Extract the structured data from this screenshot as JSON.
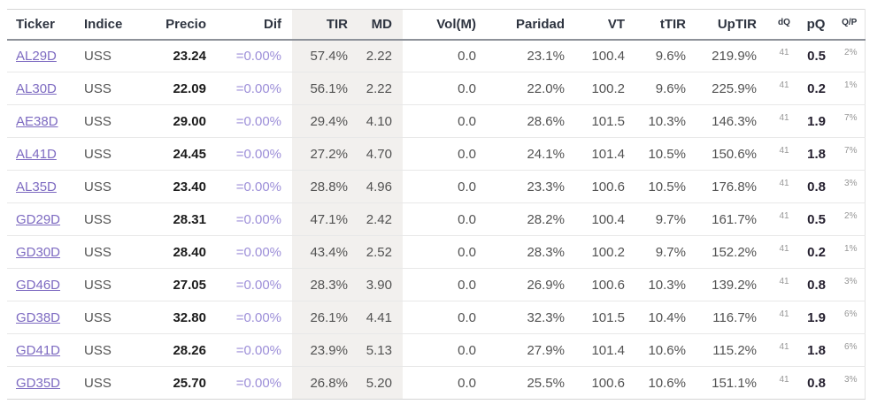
{
  "colors": {
    "link_purple": "#7d6ac1",
    "dif_purple": "#9c8ed8",
    "shade_bg": "#f2f0ee",
    "header_text": "#2e3440",
    "body_text": "#525252",
    "bold_value": "#1c1c1c",
    "small_gray": "#979797",
    "header_rule": "#8d9199"
  },
  "table": {
    "columns": [
      {
        "key": "ticker",
        "label": "Ticker"
      },
      {
        "key": "indice",
        "label": "Indice"
      },
      {
        "key": "precio",
        "label": "Precio"
      },
      {
        "key": "dif",
        "label": "Dif"
      },
      {
        "key": "tir",
        "label": "TIR"
      },
      {
        "key": "md",
        "label": "MD"
      },
      {
        "key": "vol",
        "label": "Vol(M)"
      },
      {
        "key": "paridad",
        "label": "Paridad"
      },
      {
        "key": "vt",
        "label": "VT"
      },
      {
        "key": "ttir",
        "label": "tTIR"
      },
      {
        "key": "uptir",
        "label": "UpTIR"
      },
      {
        "key": "dq",
        "label": "dQ"
      },
      {
        "key": "pq",
        "label": "pQ"
      },
      {
        "key": "qp",
        "label": "Q/P"
      }
    ],
    "rows": [
      {
        "ticker": "AL29D",
        "indice": "USS",
        "precio": "23.24",
        "dif": "=0.00%",
        "tir": "57.4%",
        "md": "2.22",
        "vol": "0.0",
        "paridad": "23.1%",
        "vt": "100.4",
        "ttir": "9.6%",
        "uptir": "219.9%",
        "dq": "41",
        "pq": "0.5",
        "qp": "2%"
      },
      {
        "ticker": "AL30D",
        "indice": "USS",
        "precio": "22.09",
        "dif": "=0.00%",
        "tir": "56.1%",
        "md": "2.22",
        "vol": "0.0",
        "paridad": "22.0%",
        "vt": "100.2",
        "ttir": "9.6%",
        "uptir": "225.9%",
        "dq": "41",
        "pq": "0.2",
        "qp": "1%"
      },
      {
        "ticker": "AE38D",
        "indice": "USS",
        "precio": "29.00",
        "dif": "=0.00%",
        "tir": "29.4%",
        "md": "4.10",
        "vol": "0.0",
        "paridad": "28.6%",
        "vt": "101.5",
        "ttir": "10.3%",
        "uptir": "146.3%",
        "dq": "41",
        "pq": "1.9",
        "qp": "7%"
      },
      {
        "ticker": "AL41D",
        "indice": "USS",
        "precio": "24.45",
        "dif": "=0.00%",
        "tir": "27.2%",
        "md": "4.70",
        "vol": "0.0",
        "paridad": "24.1%",
        "vt": "101.4",
        "ttir": "10.5%",
        "uptir": "150.6%",
        "dq": "41",
        "pq": "1.8",
        "qp": "7%"
      },
      {
        "ticker": "AL35D",
        "indice": "USS",
        "precio": "23.40",
        "dif": "=0.00%",
        "tir": "28.8%",
        "md": "4.96",
        "vol": "0.0",
        "paridad": "23.3%",
        "vt": "100.6",
        "ttir": "10.5%",
        "uptir": "176.8%",
        "dq": "41",
        "pq": "0.8",
        "qp": "3%"
      },
      {
        "ticker": "GD29D",
        "indice": "USS",
        "precio": "28.31",
        "dif": "=0.00%",
        "tir": "47.1%",
        "md": "2.42",
        "vol": "0.0",
        "paridad": "28.2%",
        "vt": "100.4",
        "ttir": "9.7%",
        "uptir": "161.7%",
        "dq": "41",
        "pq": "0.5",
        "qp": "2%"
      },
      {
        "ticker": "GD30D",
        "indice": "USS",
        "precio": "28.40",
        "dif": "=0.00%",
        "tir": "43.4%",
        "md": "2.52",
        "vol": "0.0",
        "paridad": "28.3%",
        "vt": "100.2",
        "ttir": "9.7%",
        "uptir": "152.2%",
        "dq": "41",
        "pq": "0.2",
        "qp": "1%"
      },
      {
        "ticker": "GD46D",
        "indice": "USS",
        "precio": "27.05",
        "dif": "=0.00%",
        "tir": "28.3%",
        "md": "3.90",
        "vol": "0.0",
        "paridad": "26.9%",
        "vt": "100.6",
        "ttir": "10.3%",
        "uptir": "139.2%",
        "dq": "41",
        "pq": "0.8",
        "qp": "3%"
      },
      {
        "ticker": "GD38D",
        "indice": "USS",
        "precio": "32.80",
        "dif": "=0.00%",
        "tir": "26.1%",
        "md": "4.41",
        "vol": "0.0",
        "paridad": "32.3%",
        "vt": "101.5",
        "ttir": "10.4%",
        "uptir": "116.7%",
        "dq": "41",
        "pq": "1.9",
        "qp": "6%"
      },
      {
        "ticker": "GD41D",
        "indice": "USS",
        "precio": "28.26",
        "dif": "=0.00%",
        "tir": "23.9%",
        "md": "5.13",
        "vol": "0.0",
        "paridad": "27.9%",
        "vt": "101.4",
        "ttir": "10.6%",
        "uptir": "115.2%",
        "dq": "41",
        "pq": "1.8",
        "qp": "6%"
      },
      {
        "ticker": "GD35D",
        "indice": "USS",
        "precio": "25.70",
        "dif": "=0.00%",
        "tir": "26.8%",
        "md": "5.20",
        "vol": "0.0",
        "paridad": "25.5%",
        "vt": "100.6",
        "ttir": "10.6%",
        "uptir": "151.1%",
        "dq": "41",
        "pq": "0.8",
        "qp": "3%"
      }
    ]
  }
}
